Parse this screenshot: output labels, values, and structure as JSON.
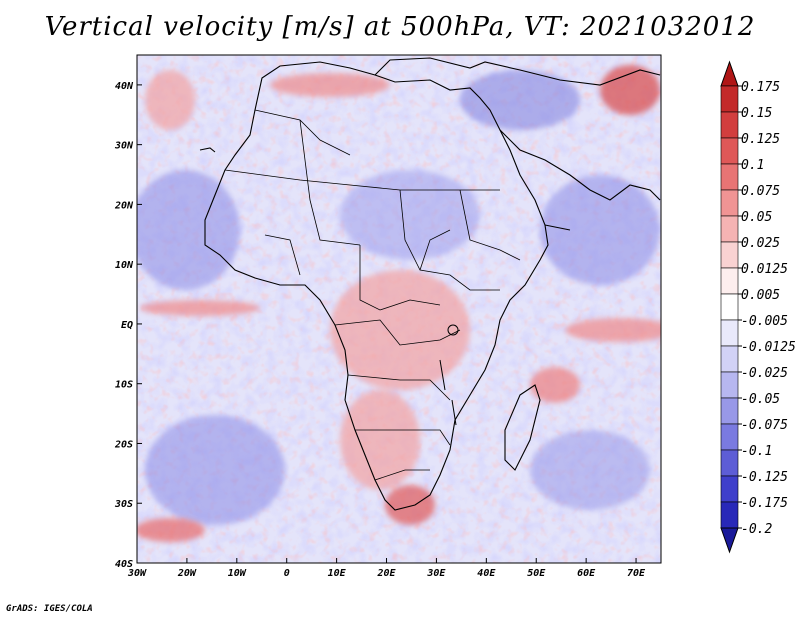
{
  "title": "Vertical velocity [m/s] at 500hPa, VT: 2021032012",
  "footer": "GrADS: IGES/COLA",
  "map": {
    "region": "Africa",
    "variable": "Vertical velocity",
    "units": "m/s",
    "level": "500hPa",
    "valid_time": "2021032012",
    "lon_range": [
      -30,
      75
    ],
    "lat_range": [
      -40,
      45
    ],
    "lat_labels": [
      "40N",
      "30N",
      "20N",
      "10N",
      "EQ",
      "10S",
      "20S",
      "30S",
      "40S"
    ],
    "lat_values": [
      40,
      30,
      20,
      10,
      0,
      -10,
      -20,
      -30,
      -40
    ],
    "lon_labels": [
      "30W",
      "20W",
      "10W",
      "0",
      "10E",
      "20E",
      "30E",
      "40E",
      "50E",
      "60E",
      "70E"
    ],
    "lon_values": [
      -30,
      -20,
      -10,
      0,
      10,
      20,
      30,
      40,
      50,
      60,
      70
    ]
  },
  "colorbar": {
    "labels": [
      "0.175",
      "0.15",
      "0.125",
      "0.1",
      "0.075",
      "0.05",
      "0.025",
      "0.0125",
      "0.005",
      "-0.005",
      "-0.0125",
      "-0.025",
      "-0.05",
      "-0.075",
      "-0.1",
      "-0.125",
      "-0.175",
      "-0.2"
    ],
    "colors": [
      "#b01616",
      "#c32a2a",
      "#d23e3e",
      "#df5858",
      "#e87474",
      "#f09494",
      "#f5b3b3",
      "#f9d2d2",
      "#fdeeee",
      "#ffffff",
      "#e9e9fb",
      "#d2d2f6",
      "#b7b7f0",
      "#9898e8",
      "#7a7ae0",
      "#5d5dd6",
      "#3f3fcb",
      "#2828b8",
      "#1a1a9a"
    ]
  }
}
